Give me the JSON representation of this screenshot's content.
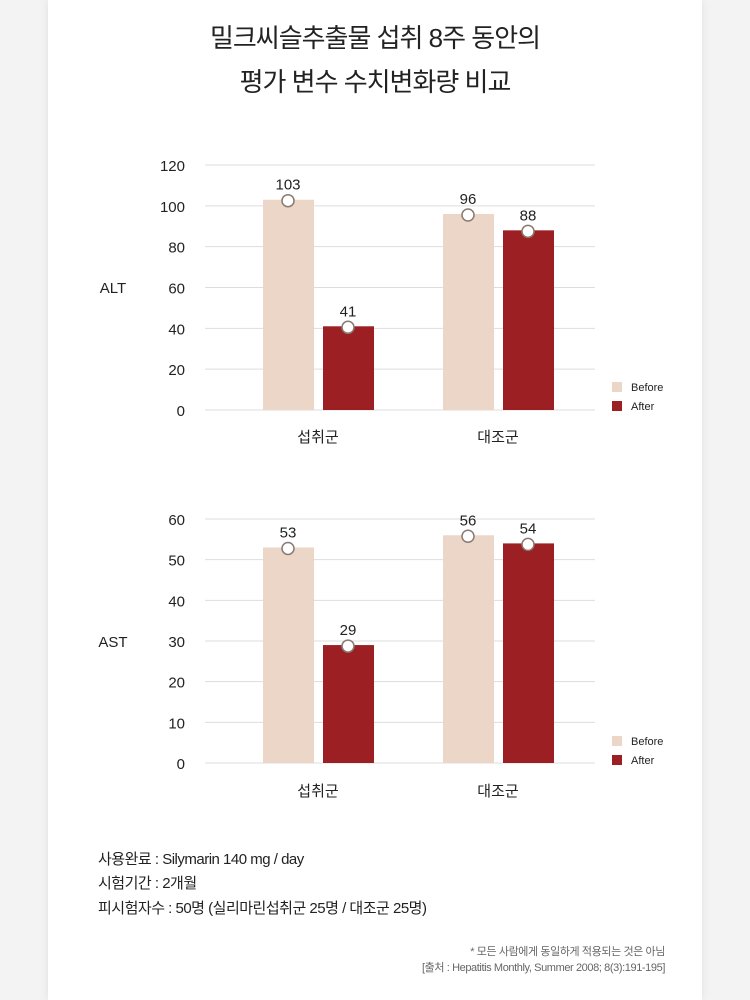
{
  "title": {
    "line1": "밀크씨슬추출물 섭취 8주 동안의",
    "line2": "평가 변수 수치변화량 비교"
  },
  "colors": {
    "before": "#ecd6c7",
    "after": "#9b1f23",
    "grid": "#dddddd",
    "text": "#222222"
  },
  "chart_data": [
    {
      "type": "bar",
      "ylabel": "ALT",
      "categories": [
        "섭취군",
        "대조군"
      ],
      "ylim": [
        0,
        120
      ],
      "yticks": [
        0,
        20,
        40,
        60,
        80,
        100,
        120
      ],
      "series": [
        {
          "name": "Before",
          "values": [
            103,
            96
          ]
        },
        {
          "name": "After",
          "values": [
            41,
            88
          ]
        }
      ],
      "legend": "bottom-right",
      "grid": true
    },
    {
      "type": "bar",
      "ylabel": "AST",
      "categories": [
        "섭취군",
        "대조군"
      ],
      "ylim": [
        0,
        60
      ],
      "yticks": [
        0,
        10,
        20,
        30,
        40,
        50,
        60
      ],
      "series": [
        {
          "name": "Before",
          "values": [
            53,
            56
          ]
        },
        {
          "name": "After",
          "values": [
            29,
            54
          ]
        }
      ],
      "legend": "bottom-right",
      "grid": true
    }
  ],
  "notes": [
    "사용완료 : Silymarin 140 mg / day",
    "시험기간 : 2개월",
    "피시험자수 : 50명 (실리마린섭취군 25명 / 대조군 25명)"
  ],
  "footnotes": [
    "* 모든 사람에게 동일하게 적용되는 것은 아님",
    "[출처 : Hepatitis Monthly, Summer 2008; 8(3):191-195]"
  ]
}
